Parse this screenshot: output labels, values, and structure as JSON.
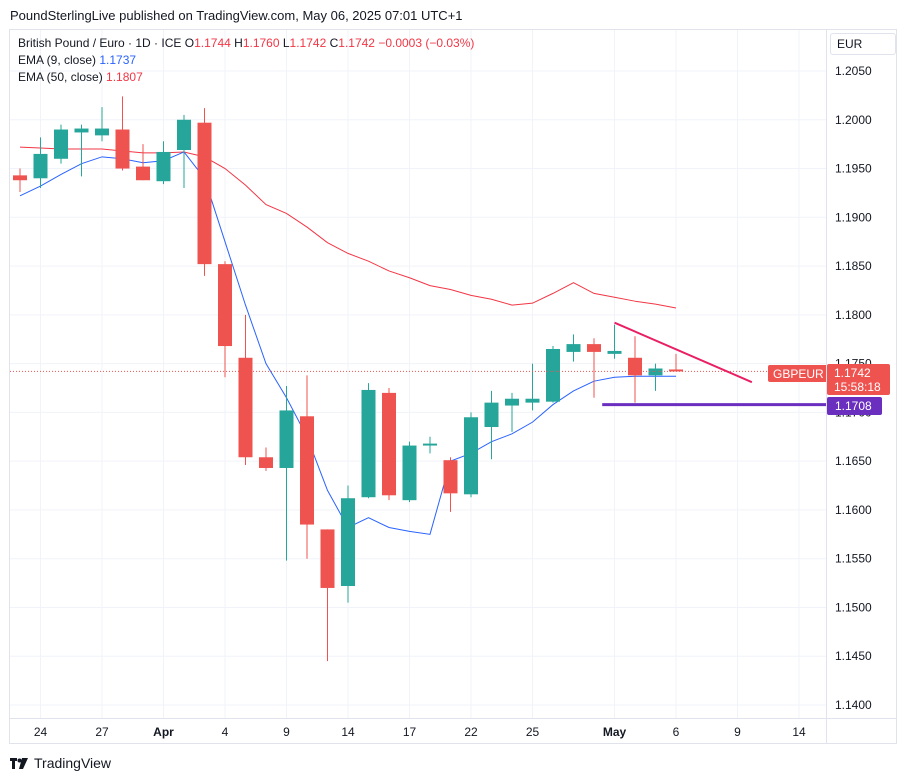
{
  "header": {
    "publisher_text": "PoundSterlingLive published on TradingView.com, May 06, 2025 07:01 UTC+1"
  },
  "legend": {
    "symbol": "British Pound / Euro · 1D · ICE",
    "o_label": "O",
    "o_value": "1.1744",
    "h_label": "H",
    "h_value": "1.1760",
    "l_label": "L",
    "l_value": "1.1742",
    "c_label": "C",
    "c_value": "1.1742",
    "change": "−0.0003 (−0.03%)",
    "ema9_label": "EMA (9, close)",
    "ema9_value": "1.1737",
    "ema50_label": "EMA (50, close)",
    "ema50_value": "1.1807"
  },
  "currency_label": "EUR",
  "price_tags": {
    "ticker": "GBPEUR",
    "last_price": "1.1742",
    "countdown": "15:58:18",
    "support_price": "1.1708"
  },
  "footer": {
    "brand": "TradingView"
  },
  "colors": {
    "up": "#26a69a",
    "down": "#ef5350",
    "ema9": "#2962ff",
    "ema50": "#f23645",
    "support": "#6b2fbf",
    "trendline": "#e91e63"
  },
  "chart_data": {
    "type": "candlestick",
    "title": "British Pound / Euro · 1D · ICE",
    "ylim": [
      1.138,
      1.208
    ],
    "y_ticks": [
      "1.1400",
      "1.1450",
      "1.1500",
      "1.1550",
      "1.1600",
      "1.1650",
      "1.1700",
      "1.1750",
      "1.1800",
      "1.1850",
      "1.1900",
      "1.1950",
      "1.2000",
      "1.2050"
    ],
    "x_ticks": [
      {
        "label": "24",
        "index": 1,
        "bold": false
      },
      {
        "label": "27",
        "index": 4,
        "bold": false
      },
      {
        "label": "Apr",
        "index": 7,
        "bold": true
      },
      {
        "label": "4",
        "index": 10,
        "bold": false
      },
      {
        "label": "9",
        "index": 13,
        "bold": false
      },
      {
        "label": "14",
        "index": 16,
        "bold": false
      },
      {
        "label": "17",
        "index": 19,
        "bold": false
      },
      {
        "label": "22",
        "index": 22,
        "bold": false
      },
      {
        "label": "25",
        "index": 25,
        "bold": false
      },
      {
        "label": "May",
        "index": 29,
        "bold": true
      },
      {
        "label": "6",
        "index": 32,
        "bold": false
      },
      {
        "label": "9",
        "index": 35,
        "bold": false
      },
      {
        "label": "14",
        "index": 38,
        "bold": false
      }
    ],
    "candles": [
      {
        "o": 1.1943,
        "h": 1.195,
        "l": 1.1926,
        "c": 1.1938
      },
      {
        "o": 1.194,
        "h": 1.1982,
        "l": 1.193,
        "c": 1.1965
      },
      {
        "o": 1.196,
        "h": 1.1995,
        "l": 1.1955,
        "c": 1.199
      },
      {
        "o": 1.1987,
        "h": 1.1995,
        "l": 1.1942,
        "c": 1.1991
      },
      {
        "o": 1.1984,
        "h": 1.2013,
        "l": 1.1978,
        "c": 1.1991
      },
      {
        "o": 1.199,
        "h": 1.2024,
        "l": 1.1948,
        "c": 1.195
      },
      {
        "o": 1.1952,
        "h": 1.1975,
        "l": 1.1938,
        "c": 1.1938
      },
      {
        "o": 1.1937,
        "h": 1.1978,
        "l": 1.1934,
        "c": 1.1967
      },
      {
        "o": 1.1969,
        "h": 1.2005,
        "l": 1.193,
        "c": 1.2
      },
      {
        "o": 1.1997,
        "h": 1.2012,
        "l": 1.184,
        "c": 1.1852
      },
      {
        "o": 1.1852,
        "h": 1.1855,
        "l": 1.1736,
        "c": 1.1768
      },
      {
        "o": 1.1756,
        "h": 1.18,
        "l": 1.1646,
        "c": 1.1654
      },
      {
        "o": 1.1654,
        "h": 1.1664,
        "l": 1.164,
        "c": 1.1643
      },
      {
        "o": 1.1643,
        "h": 1.1727,
        "l": 1.1548,
        "c": 1.1702
      },
      {
        "o": 1.1696,
        "h": 1.1738,
        "l": 1.155,
        "c": 1.1585
      },
      {
        "o": 1.158,
        "h": 1.158,
        "l": 1.1445,
        "c": 1.152
      },
      {
        "o": 1.1522,
        "h": 1.1625,
        "l": 1.1505,
        "c": 1.1612
      },
      {
        "o": 1.1613,
        "h": 1.173,
        "l": 1.1612,
        "c": 1.1723
      },
      {
        "o": 1.172,
        "h": 1.1725,
        "l": 1.161,
        "c": 1.1615
      },
      {
        "o": 1.161,
        "h": 1.167,
        "l": 1.1608,
        "c": 1.1666
      },
      {
        "o": 1.1666,
        "h": 1.1675,
        "l": 1.1658,
        "c": 1.1668
      },
      {
        "o": 1.1651,
        "h": 1.1654,
        "l": 1.1598,
        "c": 1.1617
      },
      {
        "o": 1.1616,
        "h": 1.17,
        "l": 1.1613,
        "c": 1.1695
      },
      {
        "o": 1.1685,
        "h": 1.1722,
        "l": 1.1652,
        "c": 1.171
      },
      {
        "o": 1.1707,
        "h": 1.172,
        "l": 1.168,
        "c": 1.1714
      },
      {
        "o": 1.171,
        "h": 1.175,
        "l": 1.1702,
        "c": 1.1714
      },
      {
        "o": 1.1711,
        "h": 1.1768,
        "l": 1.171,
        "c": 1.1765
      },
      {
        "o": 1.1762,
        "h": 1.178,
        "l": 1.1752,
        "c": 1.177
      },
      {
        "o": 1.177,
        "h": 1.1776,
        "l": 1.1715,
        "c": 1.1762
      },
      {
        "o": 1.176,
        "h": 1.179,
        "l": 1.1755,
        "c": 1.1763
      },
      {
        "o": 1.1756,
        "h": 1.1778,
        "l": 1.171,
        "c": 1.1738
      },
      {
        "o": 1.1738,
        "h": 1.175,
        "l": 1.1722,
        "c": 1.1745
      },
      {
        "o": 1.1744,
        "h": 1.176,
        "l": 1.1742,
        "c": 1.1742
      }
    ],
    "ema9": [
      1.1922,
      1.1932,
      1.1944,
      1.1955,
      1.1962,
      1.196,
      1.1956,
      1.1958,
      1.1967,
      1.194,
      1.1875,
      1.181,
      1.175,
      1.1715,
      1.1675,
      1.162,
      1.1582,
      1.1592,
      1.1582,
      1.1578,
      1.1575,
      1.165,
      1.1658,
      1.167,
      1.1678,
      1.169,
      1.1708,
      1.1722,
      1.1732,
      1.1736,
      1.1737,
      1.1737,
      1.1737
    ],
    "ema50": [
      1.1972,
      1.1971,
      1.197,
      1.197,
      1.197,
      1.1968,
      1.1966,
      1.1966,
      1.1967,
      1.1962,
      1.195,
      1.1933,
      1.1913,
      1.1904,
      1.189,
      1.1874,
      1.1863,
      1.1855,
      1.1845,
      1.1838,
      1.183,
      1.1826,
      1.182,
      1.1816,
      1.181,
      1.1812,
      1.1822,
      1.1833,
      1.1822,
      1.1818,
      1.1814,
      1.1811,
      1.1807
    ],
    "annotations": {
      "support_level": 1.1708,
      "support_from_index": 28.4,
      "trendline": {
        "x1": 29,
        "y1": 1.1792,
        "x2": 35.7,
        "y2": 1.1731
      },
      "last_price": 1.1742
    }
  }
}
